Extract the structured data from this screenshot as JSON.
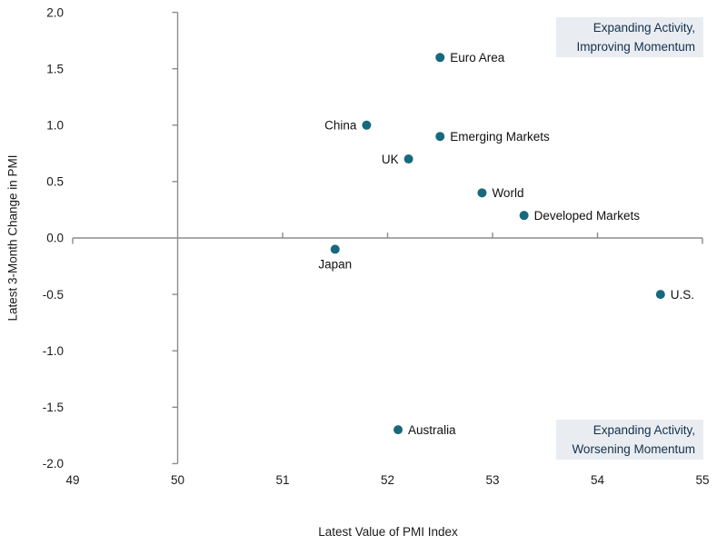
{
  "chart_data": {
    "type": "scatter",
    "xlabel": "Latest Value of PMI Index",
    "ylabel": "Latest 3-Month Change in PMI",
    "xlim": [
      49,
      55
    ],
    "ylim": [
      -2.0,
      2.0
    ],
    "x_ticks": [
      49,
      50,
      51,
      52,
      53,
      54,
      55
    ],
    "y_ticks": [
      2.0,
      1.5,
      1.0,
      0.5,
      0.0,
      -0.5,
      -1.0,
      -1.5,
      -2.0
    ],
    "y_axis_position": 50,
    "x_axis_position": 0.0,
    "grid": false,
    "legend": "none",
    "marker_color": "#17697E",
    "axis_color": "#8C8C8C",
    "annotation_bg": "#E9EDF1",
    "annotation_text_color": "#14304D",
    "points": [
      {
        "label": "Euro Area",
        "x": 52.5,
        "y": 1.6,
        "label_side": "right"
      },
      {
        "label": "China",
        "x": 51.8,
        "y": 1.0,
        "label_side": "left"
      },
      {
        "label": "Emerging Markets",
        "x": 52.5,
        "y": 0.9,
        "label_side": "right"
      },
      {
        "label": "UK",
        "x": 52.2,
        "y": 0.7,
        "label_side": "left"
      },
      {
        "label": "World",
        "x": 52.9,
        "y": 0.4,
        "label_side": "right"
      },
      {
        "label": "Developed Markets",
        "x": 53.3,
        "y": 0.2,
        "label_side": "right"
      },
      {
        "label": "Japan",
        "x": 51.5,
        "y": -0.1,
        "label_side": "below"
      },
      {
        "label": "U.S.",
        "x": 54.6,
        "y": -0.5,
        "label_side": "right"
      },
      {
        "label": "Australia",
        "x": 52.1,
        "y": -1.7,
        "label_side": "right"
      }
    ],
    "annotations": [
      {
        "id": "improving",
        "position": "top-right",
        "lines": [
          "Expanding Activity,",
          "Improving Momentum"
        ]
      },
      {
        "id": "worsening",
        "position": "bottom-right",
        "lines": [
          "Expanding Activity,",
          "Worsening Momentum"
        ]
      }
    ]
  }
}
